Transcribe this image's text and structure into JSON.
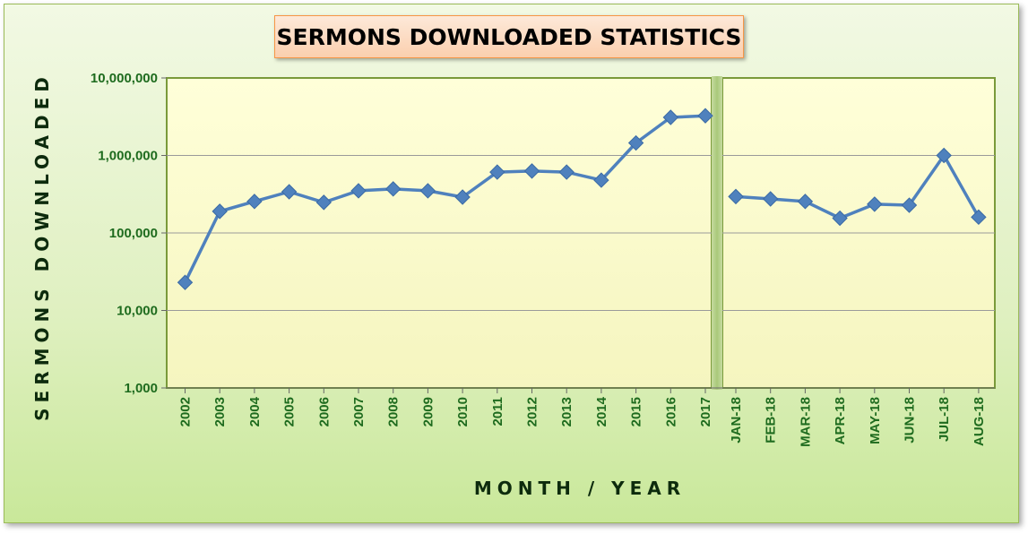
{
  "chart_data": {
    "type": "line",
    "title": "SERMONS DOWNLOADED STATISTICS",
    "xlabel": "MONTH / YEAR",
    "ylabel": "SERMONS DOWNLOADED",
    "yscale": "log",
    "ylim": [
      1000,
      10000000
    ],
    "y_ticks": [
      "1,000",
      "10,000",
      "100,000",
      "1,000,000",
      "10,000,000"
    ],
    "grid": true,
    "legend": "none",
    "colors": {
      "line": "#4f81bd",
      "marker": "#4f81bd",
      "tick_text": "#1e6b1e",
      "plot_bg": "#ffffcc",
      "divider": "#b6d08a"
    },
    "series": [
      {
        "categories": [
          "2002",
          "2003",
          "2004",
          "2005",
          "2006",
          "2007",
          "2008",
          "2009",
          "2010",
          "2011",
          "2012",
          "2013",
          "2014",
          "2015",
          "2016",
          "2017"
        ],
        "values": [
          23000,
          190000,
          255000,
          340000,
          248000,
          350000,
          370000,
          350000,
          290000,
          610000,
          630000,
          610000,
          480000,
          1450000,
          3100000,
          3250000
        ]
      },
      {
        "categories": [
          "JAN-18",
          "FEB-18",
          "MAR-18",
          "APR-18",
          "MAY-18",
          "JUN-18",
          "JUL-18",
          "AUG-18"
        ],
        "values": [
          295000,
          275000,
          255000,
          155000,
          235000,
          228000,
          1000000,
          160000
        ]
      }
    ]
  }
}
